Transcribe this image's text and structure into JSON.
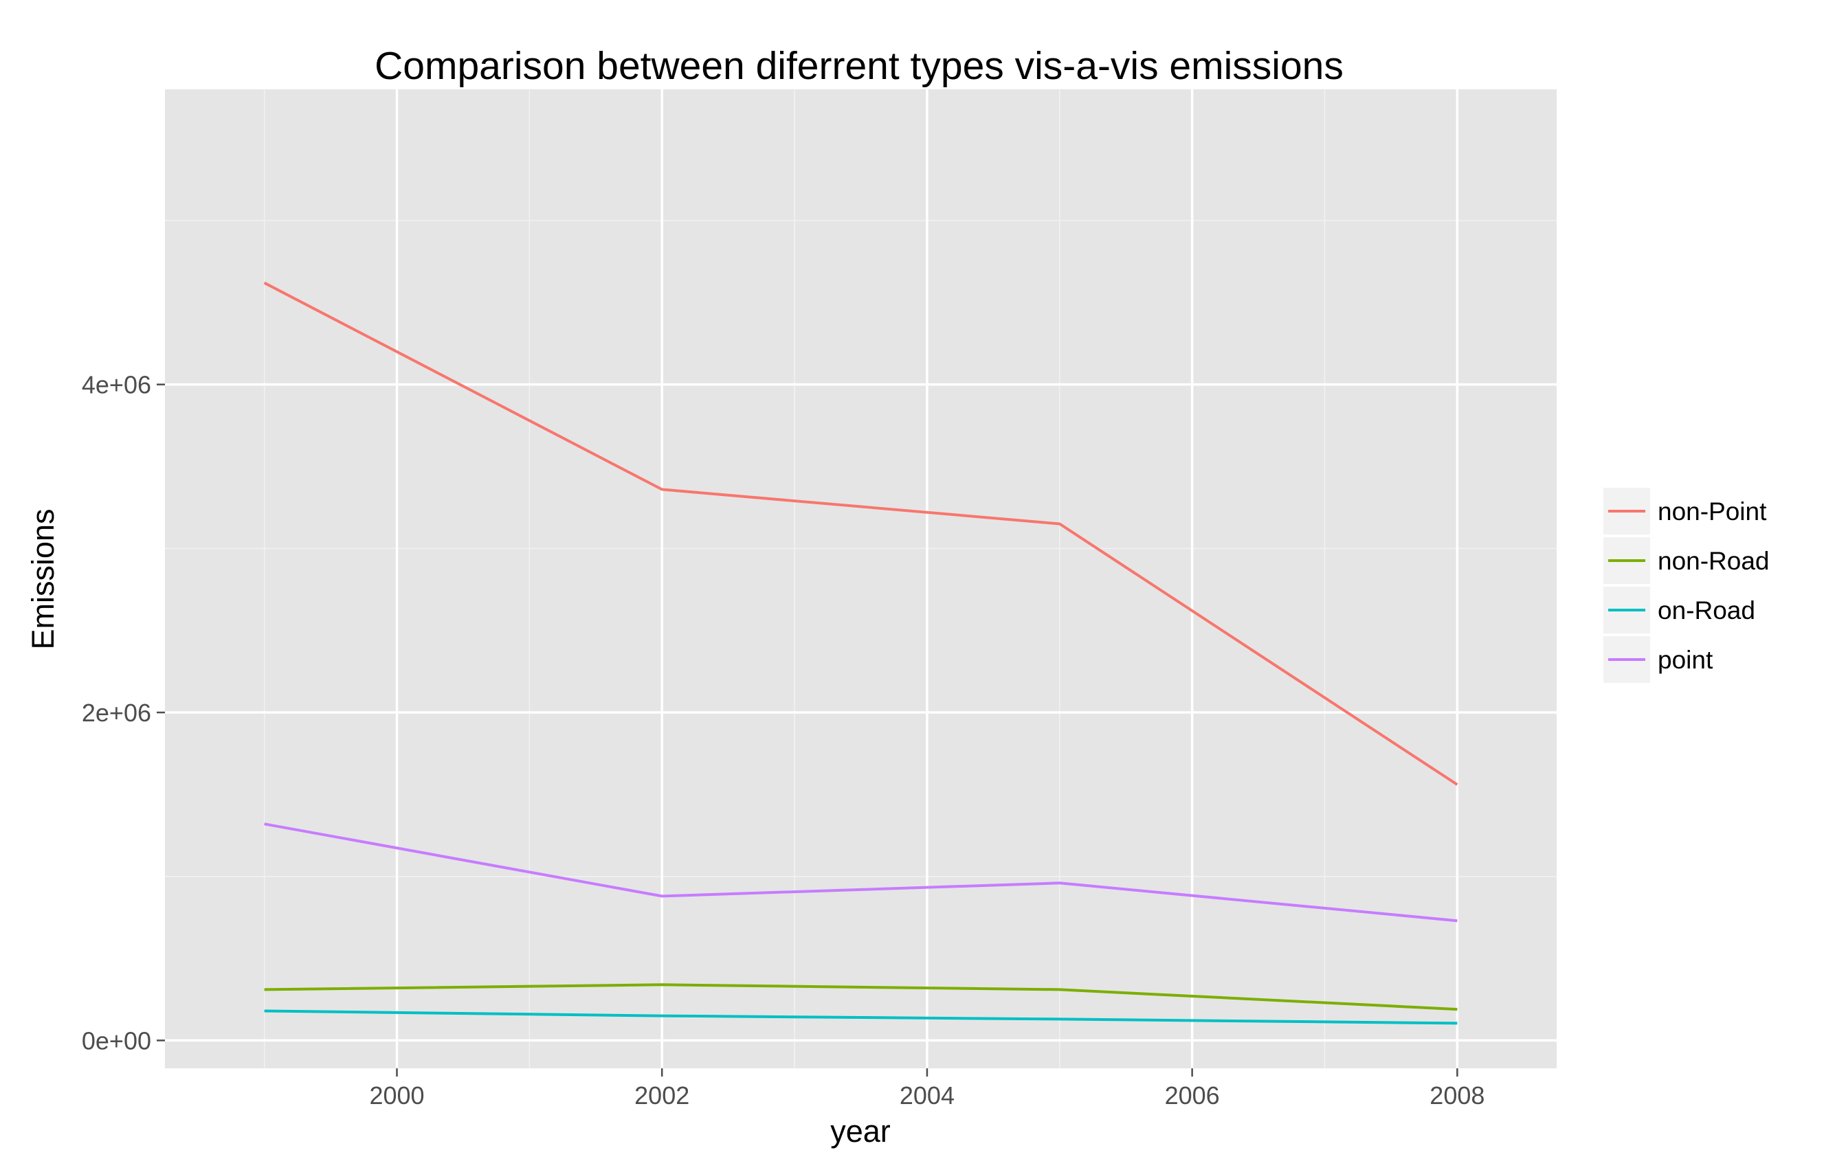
{
  "chart_data": {
    "type": "line",
    "title": "Comparison between diferrent types vis-a-vis emissions",
    "xlabel": "year",
    "ylabel": "Emissions",
    "x": [
      1999,
      2002,
      2005,
      2008
    ],
    "xlim": [
      1998.25,
      2008.75
    ],
    "ylim": [
      -170000,
      5800000
    ],
    "x_ticks": [
      {
        "value": 2000,
        "label": "2000"
      },
      {
        "value": 2002,
        "label": "2002"
      },
      {
        "value": 2004,
        "label": "2004"
      },
      {
        "value": 2006,
        "label": "2006"
      },
      {
        "value": 2008,
        "label": "2008"
      }
    ],
    "x_minor_ticks": [
      1999,
      2001,
      2003,
      2005,
      2007
    ],
    "y_ticks": [
      {
        "value": 0,
        "label": "0e+00"
      },
      {
        "value": 2000000,
        "label": "2e+06"
      },
      {
        "value": 4000000,
        "label": "4e+06"
      }
    ],
    "y_minor_ticks": [
      1000000,
      3000000,
      5000000
    ],
    "grid": true,
    "legend_position": "right",
    "series": [
      {
        "name": "non-Point",
        "color": "#F8766D",
        "values": [
          4620000,
          3360000,
          3150000,
          1560000
        ]
      },
      {
        "name": "non-Road",
        "color": "#7CAE00",
        "values": [
          310000,
          340000,
          310000,
          190000
        ]
      },
      {
        "name": "on-Road",
        "color": "#00BFC4",
        "values": [
          180000,
          150000,
          130000,
          105000
        ]
      },
      {
        "name": "point",
        "color": "#C77CFF",
        "values": [
          1320000,
          880000,
          960000,
          730000
        ]
      }
    ]
  }
}
